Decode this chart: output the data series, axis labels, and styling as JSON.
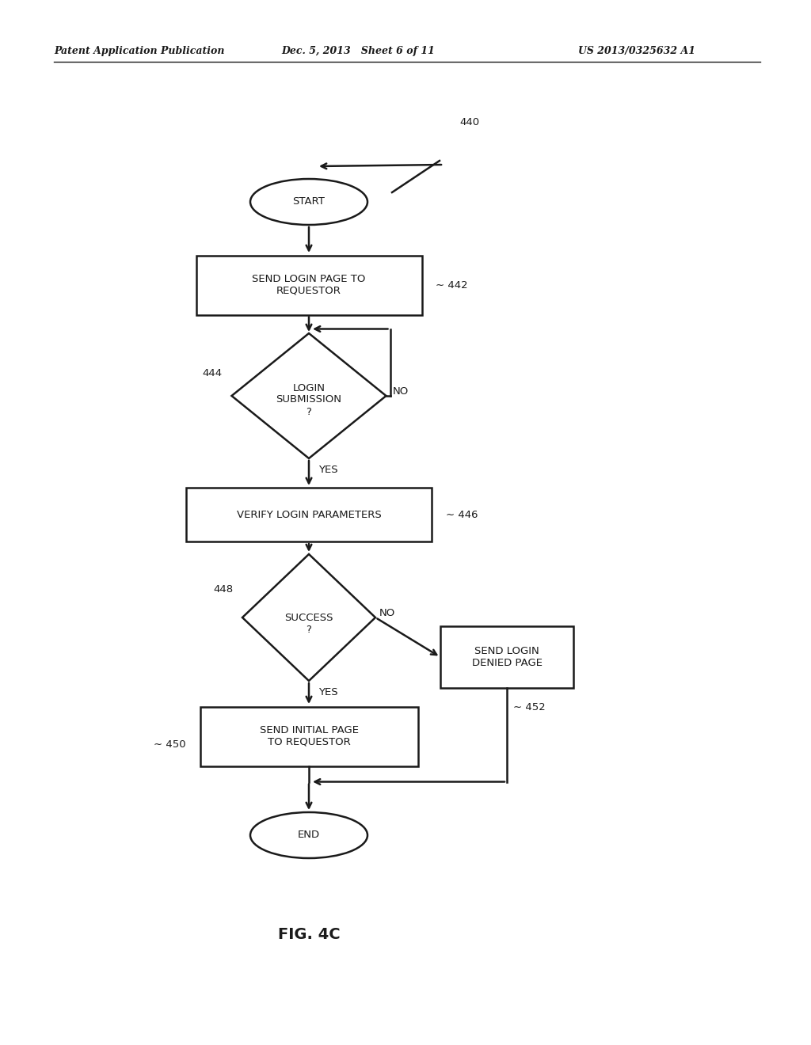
{
  "header_left": "Patent Application Publication",
  "header_mid": "Dec. 5, 2013   Sheet 6 of 11",
  "header_right": "US 2013/0325632 A1",
  "fig_label": "FIG. 4C",
  "ref_440": "440",
  "ref_442": "442",
  "ref_444": "444",
  "ref_446": "446",
  "ref_448": "448",
  "ref_450": "450",
  "ref_452": "452",
  "start_label": "START",
  "end_label": "END",
  "box1_label": "SEND LOGIN PAGE TO\nREQUESTOR",
  "diamond1_label": "LOGIN\nSUBMISSION\n?",
  "box2_label": "VERIFY LOGIN PARAMETERS",
  "diamond2_label": "SUCCESS\n?",
  "box3_label": "SEND INITIAL PAGE\nTO REQUESTOR",
  "box4_label": "SEND LOGIN\nDENIED PAGE",
  "no_label": "NO",
  "yes_label": "YES",
  "background_color": "#ffffff",
  "line_color": "#1a1a1a",
  "text_color": "#1a1a1a",
  "font_size": 9.5,
  "header_font_size": 9
}
